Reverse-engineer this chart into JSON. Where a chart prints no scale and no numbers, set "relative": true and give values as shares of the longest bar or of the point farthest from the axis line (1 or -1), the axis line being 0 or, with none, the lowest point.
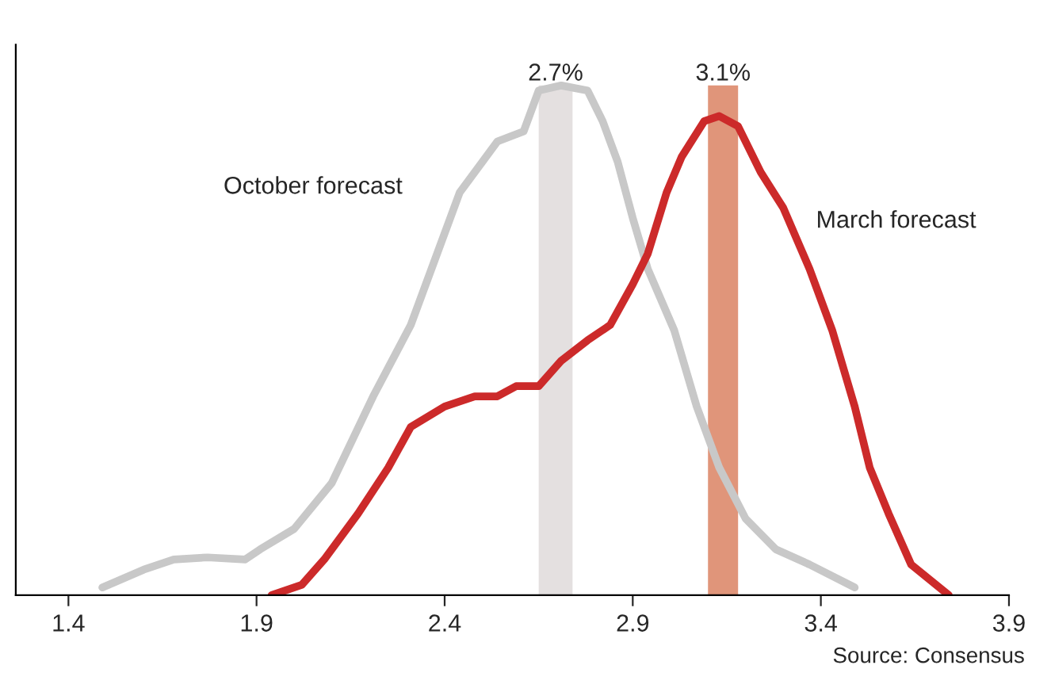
{
  "chart_data": {
    "type": "line",
    "relative": true,
    "series": [
      {
        "name": "October forecast",
        "color": "#c8c8c8",
        "x": [
          1.49,
          1.6,
          1.68,
          1.77,
          1.87,
          1.91,
          2.0,
          2.1,
          2.21,
          2.31,
          2.38,
          2.44,
          2.5,
          2.54,
          2.61,
          2.65,
          2.71,
          2.78,
          2.82,
          2.86,
          2.9,
          2.94,
          3.01,
          3.07,
          3.13,
          3.2,
          3.28,
          3.37,
          3.49
        ],
        "values": [
          0.015,
          0.05,
          0.07,
          0.074,
          0.07,
          0.09,
          0.13,
          0.22,
          0.39,
          0.53,
          0.67,
          0.79,
          0.85,
          0.89,
          0.91,
          0.99,
          1.0,
          0.99,
          0.93,
          0.85,
          0.74,
          0.64,
          0.52,
          0.37,
          0.25,
          0.15,
          0.09,
          0.06,
          0.015
        ]
      },
      {
        "name": "March forecast",
        "color": "#cc2a2a",
        "x": [
          1.94,
          2.02,
          2.08,
          2.17,
          2.25,
          2.31,
          2.4,
          2.48,
          2.54,
          2.59,
          2.65,
          2.71,
          2.78,
          2.84,
          2.9,
          2.94,
          2.99,
          3.03,
          3.09,
          3.13,
          3.18,
          3.24,
          3.3,
          3.37,
          3.43,
          3.49,
          3.53,
          3.58,
          3.64,
          3.74
        ],
        "values": [
          0,
          0.02,
          0.07,
          0.16,
          0.25,
          0.33,
          0.37,
          0.39,
          0.39,
          0.41,
          0.41,
          0.46,
          0.5,
          0.53,
          0.61,
          0.67,
          0.79,
          0.86,
          0.93,
          0.94,
          0.92,
          0.83,
          0.76,
          0.64,
          0.52,
          0.37,
          0.25,
          0.16,
          0.06,
          0
        ]
      }
    ],
    "xlim": [
      1.26,
      3.9
    ],
    "xticks": [
      1.4,
      1.9,
      2.4,
      2.9,
      3.4,
      3.9
    ],
    "bands": [
      {
        "axis": "x",
        "from": 2.65,
        "to": 2.74,
        "label": "2.7%",
        "color": "#e4e0e0"
      },
      {
        "axis": "x",
        "from": 3.1,
        "to": 3.18,
        "label": "3.1%",
        "color": "#e0957a"
      }
    ],
    "annotations": [
      "Source: Consensus"
    ],
    "grid": false,
    "legend": false,
    "marker": "none",
    "line_style": "solid"
  }
}
